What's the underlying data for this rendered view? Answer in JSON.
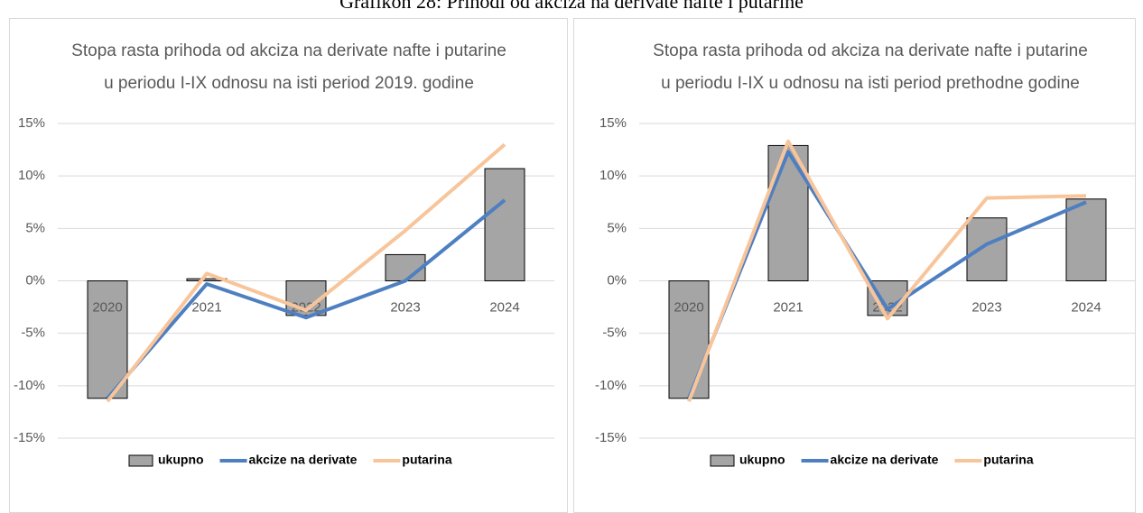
{
  "title": "Grafikon 28: Prihodi od akciza na derivate nafte i putarine",
  "chart_data": [
    {
      "type": "bar_line",
      "title_lines": [
        "Stopa rasta prihoda od akciza na derivate nafte i putarine",
        "u periodu I-IX odnosu na isti period 2019. godine"
      ],
      "categories": [
        "2020",
        "2021",
        "2022",
        "2023",
        "2024"
      ],
      "series": [
        {
          "name": "ukupno",
          "kind": "bar",
          "color": "#a5a5a5",
          "values": [
            -11.2,
            0.2,
            -3.3,
            2.5,
            10.7
          ]
        },
        {
          "name": "akcize na derivate",
          "kind": "line",
          "color": "#4e7fc1",
          "values": [
            -11.2,
            -0.3,
            -3.5,
            0.0,
            7.7
          ]
        },
        {
          "name": "putarina",
          "kind": "line",
          "color": "#f8c59b",
          "values": [
            -11.5,
            0.7,
            -2.8,
            4.8,
            13.0
          ]
        }
      ],
      "ylim": [
        -15,
        15
      ],
      "yticks": [
        {
          "value": -15,
          "label": "-15%"
        },
        {
          "value": -10,
          "label": "-10%"
        },
        {
          "value": -5,
          "label": "-5%"
        },
        {
          "value": 0,
          "label": "0%"
        },
        {
          "value": 5,
          "label": "5%"
        },
        {
          "value": 10,
          "label": "10%"
        },
        {
          "value": 15,
          "label": "15%"
        }
      ],
      "grid": true,
      "legend": "bottom"
    },
    {
      "type": "bar_line",
      "title_lines": [
        "Stopa rasta prihoda od akciza na derivate nafte i putarine",
        "u periodu I-IX u odnosu na isti period prethodne godine"
      ],
      "categories": [
        "2020",
        "2021",
        "2022",
        "2023",
        "2024"
      ],
      "series": [
        {
          "name": "ukupno",
          "kind": "bar",
          "color": "#a5a5a5",
          "values": [
            -11.2,
            12.9,
            -3.3,
            6.0,
            7.8
          ]
        },
        {
          "name": "akcize na derivate",
          "kind": "line",
          "color": "#4e7fc1",
          "values": [
            -11.2,
            12.3,
            -2.7,
            3.5,
            7.5
          ]
        },
        {
          "name": "putarina",
          "kind": "line",
          "color": "#f8c59b",
          "values": [
            -11.5,
            13.3,
            -3.6,
            7.9,
            8.1
          ]
        }
      ],
      "ylim": [
        -15,
        15
      ],
      "yticks": [
        {
          "value": -15,
          "label": "-15%"
        },
        {
          "value": -10,
          "label": "-10%"
        },
        {
          "value": -5,
          "label": "-5%"
        },
        {
          "value": 0,
          "label": "0%"
        },
        {
          "value": 5,
          "label": "5%"
        },
        {
          "value": 10,
          "label": "10%"
        },
        {
          "value": 15,
          "label": "15%"
        }
      ],
      "grid": true,
      "legend": "bottom"
    }
  ]
}
